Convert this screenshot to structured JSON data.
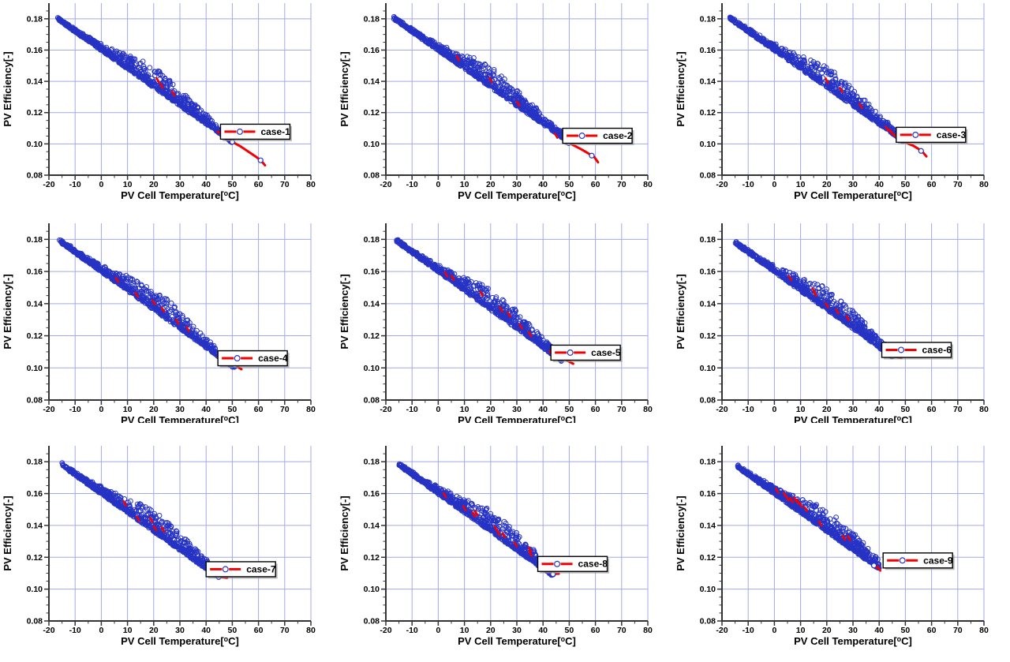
{
  "meta": {
    "background": "#ffffff",
    "panel_count": 9,
    "layout": "3x3"
  },
  "chart_data": {
    "type": "scatter",
    "grid": true,
    "xlabel": {
      "prefix": "PV Cell Temperature[",
      "sup": "o",
      "suffix": "C]"
    },
    "ylabel": "PV Efficiency[-]",
    "xlim": [
      -20,
      80
    ],
    "ylim": [
      0.08,
      0.19
    ],
    "xticks": [
      -20,
      -10,
      0,
      10,
      20,
      30,
      40,
      50,
      60,
      70,
      80
    ],
    "yticks": [
      "0.08",
      "0.10",
      "0.12",
      "0.14",
      "0.16",
      "0.18"
    ],
    "x_minor_step": 5,
    "y_minor_step": 0.005,
    "trend": {
      "intercept": 0.1602,
      "slope": -0.00118
    },
    "colors": {
      "marker": "#2633c4",
      "grid": "#a3a8e8",
      "fit": "#f40000",
      "axis": "#333333",
      "text": "#000000",
      "legend_bg": "#ffffff",
      "legend_border": "#000000",
      "legend_shadow": "#9a9a9a"
    },
    "charts": [
      {
        "name": "case-1",
        "seed": 101,
        "n_points": 720,
        "cloud_x": [
          -17,
          50
        ],
        "tail": [
          [
            44.5,
            0.1078
          ],
          [
            47,
            0.1048
          ],
          [
            50,
            0.1013
          ],
          [
            53,
            0.0985
          ],
          [
            56,
            0.0952
          ],
          [
            59,
            0.0918
          ],
          [
            61,
            0.0893
          ],
          [
            62.5,
            0.0863
          ]
        ],
        "tail_markers": [
          [
            46,
            0.1058
          ],
          [
            50,
            0.1013
          ],
          [
            60.8,
            0.0895
          ]
        ],
        "red_marks": [
          [
            21.5,
            0.1408
          ],
          [
            23,
            0.1372
          ],
          [
            27.5,
            0.1322
          ]
        ],
        "legend_anchor": [
          45.5,
          0.1078
        ]
      },
      {
        "name": "case-2",
        "seed": 102,
        "n_points": 720,
        "cloud_x": [
          -17,
          48
        ],
        "tail": [
          [
            48,
            0.1062
          ],
          [
            49,
            0.1032
          ],
          [
            50,
            0.1005
          ],
          [
            52,
            0.0988
          ],
          [
            55,
            0.0962
          ],
          [
            58,
            0.0932
          ],
          [
            59.5,
            0.0918
          ],
          [
            61,
            0.0882
          ]
        ],
        "tail_markers": [
          [
            49.8,
            0.1005
          ],
          [
            58.6,
            0.0925
          ]
        ],
        "red_marks": [
          [
            7.5,
            0.1548
          ],
          [
            20,
            0.1408
          ],
          [
            30.5,
            0.1258
          ],
          [
            45,
            0.1052
          ]
        ],
        "legend_anchor": [
          47.5,
          0.1052
        ]
      },
      {
        "name": "case-3",
        "seed": 103,
        "n_points": 720,
        "cloud_x": [
          -17,
          48
        ],
        "tail": [
          [
            44,
            0.1088
          ],
          [
            45.5,
            0.1058
          ],
          [
            47,
            0.104
          ],
          [
            49,
            0.1018
          ],
          [
            51,
            0.1002
          ],
          [
            53,
            0.0988
          ],
          [
            55,
            0.0968
          ],
          [
            56.5,
            0.095
          ],
          [
            58,
            0.092
          ]
        ],
        "tail_markers": [
          [
            49,
            0.1018
          ],
          [
            56,
            0.0955
          ]
        ],
        "red_marks": [
          [
            20,
            0.1405
          ],
          [
            25.5,
            0.1345
          ],
          [
            33,
            0.1242
          ],
          [
            43,
            0.1098
          ]
        ],
        "legend_anchor": [
          46.5,
          0.1058
        ]
      },
      {
        "name": "case-4",
        "seed": 104,
        "n_points": 720,
        "cloud_x": [
          -16,
          51
        ],
        "tail": [
          [
            44.5,
            0.1068
          ],
          [
            46.5,
            0.105
          ],
          [
            48.5,
            0.1034
          ],
          [
            51,
            0.1016
          ],
          [
            53.5,
            0.0992
          ]
        ],
        "tail_markers": [
          [
            51,
            0.1016
          ]
        ],
        "red_marks": [
          [
            6,
            0.1548
          ],
          [
            13.5,
            0.1455
          ],
          [
            20,
            0.1408
          ],
          [
            23.5,
            0.1362
          ],
          [
            29,
            0.1288
          ],
          [
            33,
            0.1242
          ]
        ],
        "legend_anchor": [
          44.5,
          0.106
        ]
      },
      {
        "name": "case-5",
        "seed": 105,
        "n_points": 720,
        "cloud_x": [
          -16,
          47
        ],
        "tail": [
          [
            43.5,
            0.1088
          ],
          [
            44.5,
            0.1072
          ],
          [
            46,
            0.1066
          ],
          [
            47.5,
            0.1062
          ],
          [
            49,
            0.1048
          ],
          [
            51.5,
            0.1026
          ]
        ],
        "tail_markers": [
          [
            44.5,
            0.1072
          ],
          [
            47.5,
            0.1062
          ]
        ],
        "red_marks": [
          [
            3,
            0.1582
          ],
          [
            5.5,
            0.156
          ],
          [
            16.5,
            0.1462
          ],
          [
            24,
            0.1365
          ],
          [
            27,
            0.1332
          ],
          [
            31.5,
            0.1258
          ],
          [
            35,
            0.121
          ],
          [
            43,
            0.1092
          ]
        ],
        "legend_anchor": [
          43,
          0.1095
        ]
      },
      {
        "name": "case-6",
        "seed": 106,
        "n_points": 720,
        "cloud_x": [
          -15,
          45
        ],
        "tail": [
          [
            42,
            0.1112
          ],
          [
            43,
            0.1092
          ],
          [
            44,
            0.1078
          ],
          [
            45,
            0.1072
          ],
          [
            46.5,
            0.1068
          ],
          [
            48.5,
            0.1062
          ]
        ],
        "tail_markers": [
          [
            45,
            0.1072
          ]
        ],
        "red_marks": [
          [
            6,
            0.1558
          ],
          [
            15,
            0.1482
          ],
          [
            15.5,
            0.1462
          ],
          [
            20,
            0.139
          ],
          [
            24,
            0.1352
          ],
          [
            28,
            0.131
          ]
        ],
        "legend_anchor": [
          41,
          0.1112
        ]
      },
      {
        "name": "case-7",
        "seed": 107,
        "n_points": 720,
        "cloud_x": [
          -15,
          44
        ],
        "tail": [
          [
            41.5,
            0.1122
          ],
          [
            42.5,
            0.1105
          ],
          [
            43.5,
            0.1088
          ],
          [
            44.8,
            0.1076
          ],
          [
            46.5,
            0.1073
          ],
          [
            48,
            0.107
          ]
        ],
        "tail_markers": [
          [
            44.8,
            0.1076
          ]
        ],
        "red_marks": [
          [
            9,
            0.1538
          ],
          [
            14,
            0.1442
          ],
          [
            19,
            0.1435
          ],
          [
            20.5,
            0.1382
          ],
          [
            23.5,
            0.1375
          ]
        ],
        "legend_anchor": [
          40,
          0.1125
        ]
      },
      {
        "name": "case-8",
        "seed": 108,
        "n_points": 720,
        "cloud_x": [
          -15,
          44
        ],
        "tail": [
          [
            39,
            0.117
          ],
          [
            40,
            0.1142
          ],
          [
            41,
            0.1122
          ],
          [
            42,
            0.1112
          ],
          [
            43,
            0.1103
          ],
          [
            43.8,
            0.1094
          ],
          [
            45,
            0.1097
          ],
          [
            46,
            0.1097
          ]
        ],
        "tail_markers": [
          [
            43.8,
            0.1094
          ]
        ],
        "red_marks": [
          [
            2.5,
            0.159
          ],
          [
            10,
            0.1508
          ],
          [
            13.5,
            0.1468
          ],
          [
            14.5,
            0.1478
          ],
          [
            22,
            0.138
          ],
          [
            23,
            0.1352
          ],
          [
            25,
            0.1338
          ],
          [
            29.5,
            0.128
          ],
          [
            35,
            0.1248
          ],
          [
            35.2,
            0.1222
          ],
          [
            39.5,
            0.1162
          ]
        ],
        "legend_anchor": [
          38,
          0.1158
        ]
      },
      {
        "name": "case-9",
        "seed": 109,
        "n_points": 720,
        "cloud_x": [
          -14,
          40
        ],
        "tail": [
          [
            38.5,
            0.1142
          ],
          [
            40,
            0.1128
          ]
        ],
        "tail_markers": [
          [
            38,
            0.1148
          ]
        ],
        "red_marks": [
          [
            1,
            0.1618
          ],
          [
            4,
            0.1592
          ],
          [
            5,
            0.157
          ],
          [
            6.5,
            0.1558
          ],
          [
            8,
            0.1562
          ],
          [
            9,
            0.1548
          ],
          [
            10,
            0.153
          ],
          [
            12,
            0.1502
          ],
          [
            17.5,
            0.1412
          ],
          [
            26.5,
            0.1322
          ],
          [
            28.5,
            0.132
          ],
          [
            40,
            0.1128
          ]
        ],
        "legend_anchor": [
          41.5,
          0.118
        ]
      }
    ]
  }
}
